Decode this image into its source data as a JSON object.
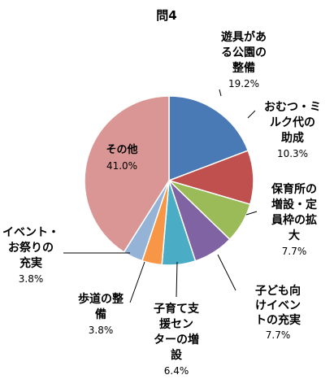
{
  "chart_data": {
    "type": "pie",
    "title": "問4",
    "start_angle_deg": 0,
    "direction": "clockwise",
    "slices": [
      {
        "name_lines": [
          "遊具があ",
          "る公園の",
          "整備"
        ],
        "value": 19.2,
        "value_label": "19.2%",
        "color": "#4a7ab5"
      },
      {
        "name_lines": [
          "おむつ・ミ",
          "ルク代の",
          "助成"
        ],
        "value": 10.3,
        "value_label": "10.3%",
        "color": "#c0504d"
      },
      {
        "name_lines": [
          "保育所の",
          "増設・定",
          "員枠の拡",
          "大"
        ],
        "value": 7.7,
        "value_label": "7.7%",
        "color": "#9bbb59"
      },
      {
        "name_lines": [
          "子ども向",
          "けイベン",
          "トの充実"
        ],
        "value": 7.7,
        "value_label": "7.7%",
        "color": "#7f63a2"
      },
      {
        "name_lines": [
          "子育て支",
          "援セン",
          "ターの増",
          "設"
        ],
        "value": 6.4,
        "value_label": "6.4%",
        "color": "#4bacc6"
      },
      {
        "name_lines": [
          "歩道の整",
          "備"
        ],
        "value": 3.8,
        "value_label": "3.8%",
        "color": "#f79646"
      },
      {
        "name_lines": [
          "イベント・",
          "お祭りの",
          "充実"
        ],
        "value": 3.8,
        "value_label": "3.8%",
        "color": "#95b3d7"
      },
      {
        "name_lines": [
          "その他"
        ],
        "value": 41.0,
        "value_label": "41.0%",
        "color": "#d99694"
      }
    ]
  }
}
